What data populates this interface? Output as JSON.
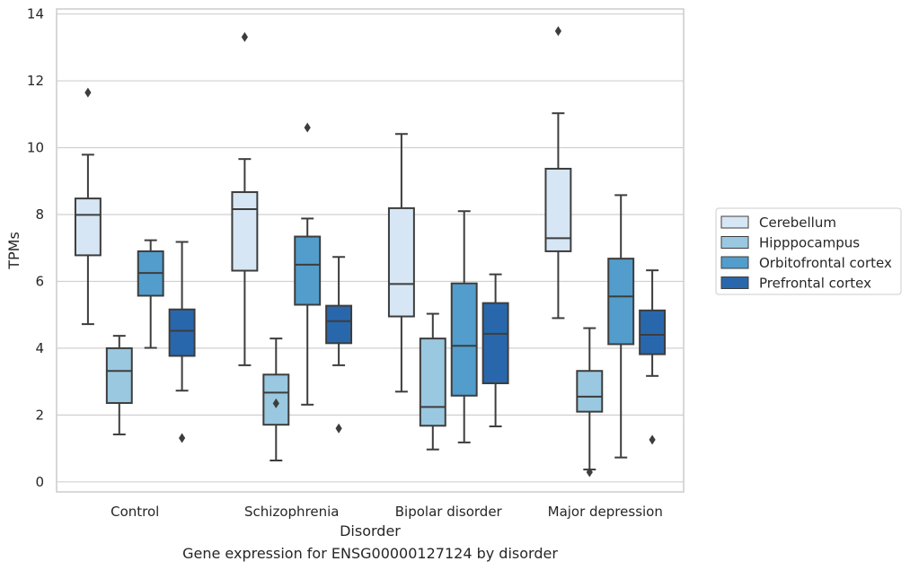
{
  "chart_data": {
    "type": "box",
    "title": "",
    "caption": "Gene expression for ENSG00000127124 by disorder",
    "xlabel": "Disorder",
    "ylabel": "TPMs",
    "ylim": [
      -0.3,
      14.15
    ],
    "yticks": [
      0,
      2,
      4,
      6,
      8,
      10,
      12,
      14
    ],
    "grid": "horizontal",
    "legend_position": "right",
    "categories": [
      "Control",
      "Schizophrenia",
      "Bipolar disorder",
      "Major depression"
    ],
    "series": [
      {
        "name": "Cerebellum",
        "color": "#d6e6f4",
        "boxes": [
          {
            "whisker_low": 4.72,
            "q1": 6.78,
            "median": 7.99,
            "q3": 8.48,
            "whisker_high": 9.79,
            "outliers": [
              11.65
            ]
          },
          {
            "whisker_low": 3.49,
            "q1": 6.32,
            "median": 8.16,
            "q3": 8.67,
            "whisker_high": 9.66,
            "outliers": [
              13.31
            ]
          },
          {
            "whisker_low": 2.7,
            "q1": 4.95,
            "median": 5.92,
            "q3": 8.19,
            "whisker_high": 10.41,
            "outliers": []
          },
          {
            "whisker_low": 4.9,
            "q1": 6.9,
            "median": 7.29,
            "q3": 9.37,
            "whisker_high": 11.03,
            "outliers": [
              13.49
            ]
          }
        ]
      },
      {
        "name": "Hipppocampus",
        "color": "#9ac8e0",
        "boxes": [
          {
            "whisker_low": 1.42,
            "q1": 2.36,
            "median": 3.32,
            "q3": 4.0,
            "whisker_high": 4.37,
            "outliers": []
          },
          {
            "whisker_low": 0.64,
            "q1": 1.71,
            "median": 2.67,
            "q3": 3.21,
            "whisker_high": 4.29,
            "outliers": [
              2.35
            ]
          },
          {
            "whisker_low": 0.97,
            "q1": 1.68,
            "median": 2.24,
            "q3": 4.29,
            "whisker_high": 5.03,
            "outliers": []
          },
          {
            "whisker_low": 0.37,
            "q1": 2.1,
            "median": 2.55,
            "q3": 3.32,
            "whisker_high": 4.6,
            "outliers": [
              0.29
            ]
          }
        ]
      },
      {
        "name": "Orbitofrontal cortex",
        "color": "#529dcc",
        "boxes": [
          {
            "whisker_low": 4.01,
            "q1": 5.57,
            "median": 6.25,
            "q3": 6.9,
            "whisker_high": 7.23,
            "outliers": []
          },
          {
            "whisker_low": 2.31,
            "q1": 5.3,
            "median": 6.5,
            "q3": 7.34,
            "whisker_high": 7.88,
            "outliers": [
              10.6
            ]
          },
          {
            "whisker_low": 1.18,
            "q1": 2.58,
            "median": 4.07,
            "q3": 5.94,
            "whisker_high": 8.1,
            "outliers": []
          },
          {
            "whisker_low": 0.73,
            "q1": 4.12,
            "median": 5.55,
            "q3": 6.68,
            "whisker_high": 8.58,
            "outliers": []
          }
        ]
      },
      {
        "name": "Prefrontal cortex",
        "color": "#2967ad",
        "boxes": [
          {
            "whisker_low": 2.73,
            "q1": 3.77,
            "median": 4.52,
            "q3": 5.16,
            "whisker_high": 7.18,
            "outliers": [
              1.31
            ]
          },
          {
            "whisker_low": 3.49,
            "q1": 4.15,
            "median": 4.81,
            "q3": 5.27,
            "whisker_high": 6.73,
            "outliers": [
              1.6
            ]
          },
          {
            "whisker_low": 1.66,
            "q1": 2.95,
            "median": 4.43,
            "q3": 5.35,
            "whisker_high": 6.21,
            "outliers": []
          },
          {
            "whisker_low": 3.17,
            "q1": 3.82,
            "median": 4.4,
            "q3": 5.13,
            "whisker_high": 6.33,
            "outliers": [
              1.26
            ]
          }
        ]
      }
    ]
  }
}
